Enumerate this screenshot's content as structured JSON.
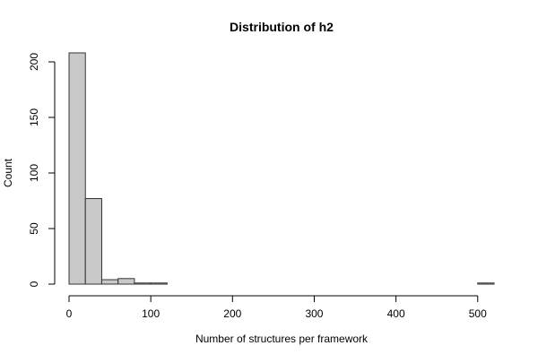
{
  "chart_data": {
    "type": "bar",
    "title": "Distribution of h2",
    "xlabel": "Number of structures per framework",
    "ylabel": "Count",
    "bin_width": 20,
    "bin_starts": [
      0,
      20,
      40,
      60,
      80,
      100,
      120,
      140,
      160,
      180,
      200,
      220,
      240,
      260,
      280,
      300,
      320,
      340,
      360,
      380,
      400,
      420,
      440,
      460,
      480,
      500
    ],
    "counts": [
      210,
      77,
      4,
      5,
      1,
      1,
      0,
      0,
      0,
      0,
      0,
      0,
      0,
      0,
      0,
      0,
      0,
      0,
      0,
      0,
      0,
      0,
      0,
      0,
      0,
      1
    ],
    "xlim": [
      0,
      520
    ],
    "ylim": [
      0,
      200
    ],
    "x_ticks": [
      0,
      100,
      200,
      300,
      400,
      500
    ],
    "x_tick_labels": [
      "0",
      "100",
      "200",
      "300",
      "400",
      "500"
    ],
    "y_ticks": [
      0,
      50,
      100,
      150,
      200
    ],
    "y_tick_labels": [
      "0",
      "50",
      "100",
      "150",
      "200"
    ],
    "bar_fill": "#c8c8c8",
    "bar_stroke": "#333333",
    "grid": false
  }
}
